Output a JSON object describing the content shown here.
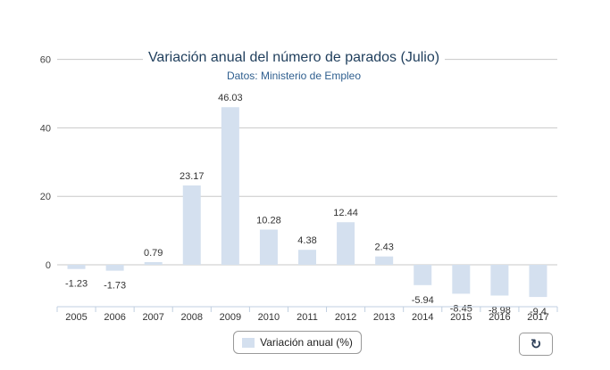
{
  "chart_data": {
    "type": "bar",
    "title": "Variación anual del número de parados (Julio)",
    "subtitle": "Datos: Ministerio de Empleo",
    "categories": [
      "2005",
      "2006",
      "2007",
      "2008",
      "2009",
      "2010",
      "2011",
      "2012",
      "2013",
      "2014",
      "2015",
      "2016",
      "2017"
    ],
    "series": [
      {
        "name": "Variación anual (%)",
        "values": [
          -1.23,
          -1.73,
          0.79,
          23.17,
          46.03,
          10.28,
          4.38,
          12.44,
          2.43,
          -5.94,
          -8.45,
          -8.98,
          -9.4
        ],
        "labels": [
          "-1.23",
          "-1.73",
          "0.79",
          "23.17",
          "46.03",
          "10.28",
          "4.38",
          "12.44",
          "2.43",
          "-5.94",
          "-8.45",
          "-8.98",
          "-9.4"
        ]
      }
    ],
    "yticks": [
      "60",
      "40",
      "20",
      "0"
    ],
    "ylim": [
      -12,
      60
    ],
    "grid": true,
    "legend_position": "bottom-center",
    "colors": {
      "bar": "#d4e0ef",
      "grid": "#c8c8c8",
      "axis": "#c0cfe0"
    }
  },
  "controls": {
    "refresh_icon": "refresh-icon"
  }
}
